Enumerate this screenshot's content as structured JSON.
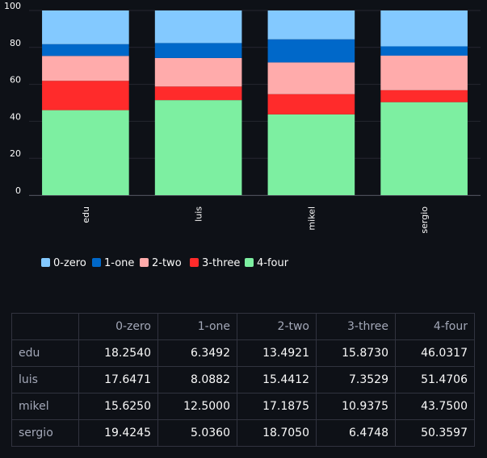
{
  "chart_data": {
    "type": "bar",
    "stacked": true,
    "categories": [
      "edu",
      "luis",
      "mikel",
      "sergio"
    ],
    "series": [
      {
        "name": "0-zero",
        "color": "#83c9ff",
        "values": [
          18.254,
          17.6471,
          15.625,
          19.4245
        ]
      },
      {
        "name": "1-one",
        "color": "#0068c9",
        "values": [
          6.3492,
          8.0882,
          12.5,
          5.036
        ]
      },
      {
        "name": "2-two",
        "color": "#ffabab",
        "values": [
          13.4921,
          15.4412,
          17.1875,
          18.705
        ]
      },
      {
        "name": "3-three",
        "color": "#ff2b2b",
        "values": [
          15.873,
          7.3529,
          10.9375,
          6.4748
        ]
      },
      {
        "name": "4-four",
        "color": "#7defa1",
        "values": [
          46.0317,
          51.4706,
          43.75,
          50.3597
        ]
      }
    ],
    "ylim": [
      0,
      100
    ],
    "yticks": [
      "0",
      "20",
      "40",
      "60",
      "80",
      "100"
    ],
    "title": "",
    "xlabel": "",
    "ylabel": "",
    "legend_position": "bottom"
  },
  "table": {
    "corner": "",
    "columns": [
      "0-zero",
      "1-one",
      "2-two",
      "3-three",
      "4-four"
    ],
    "rows": [
      {
        "label": "edu",
        "cells": [
          "18.2540",
          "6.3492",
          "13.4921",
          "15.8730",
          "46.0317"
        ]
      },
      {
        "label": "luis",
        "cells": [
          "17.6471",
          "8.0882",
          "15.4412",
          "7.3529",
          "51.4706"
        ]
      },
      {
        "label": "mikel",
        "cells": [
          "15.6250",
          "12.5000",
          "17.1875",
          "10.9375",
          "43.7500"
        ]
      },
      {
        "label": "sergio",
        "cells": [
          "19.4245",
          "5.0360",
          "18.7050",
          "6.4748",
          "50.3597"
        ]
      }
    ]
  }
}
